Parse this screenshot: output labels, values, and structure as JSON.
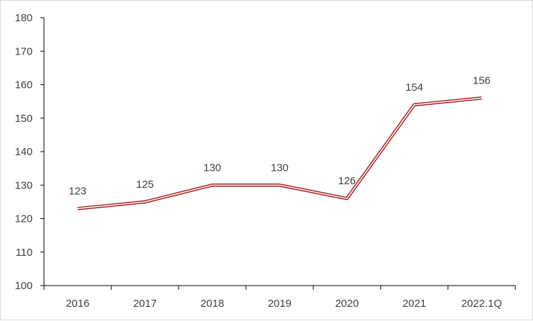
{
  "chart_data": {
    "type": "line",
    "categories": [
      "2016",
      "2017",
      "2018",
      "2019",
      "2020",
      "2021",
      "2022.1Q"
    ],
    "series": [
      {
        "values": [
          123,
          125,
          130,
          130,
          126,
          154,
          156
        ]
      }
    ],
    "data_labels": [
      "123",
      "125",
      "130",
      "130",
      "126",
      "154",
      "156"
    ],
    "y_ticks": [
      "100",
      "110",
      "120",
      "130",
      "140",
      "150",
      "160",
      "170",
      "180"
    ],
    "ylim": [
      100,
      180
    ],
    "grid": false,
    "legend": "none",
    "line_style": "double",
    "colors": {
      "line": "#a61c1c",
      "line_inner": "#ffffff",
      "axis": "#000000",
      "text": "#404040"
    }
  }
}
